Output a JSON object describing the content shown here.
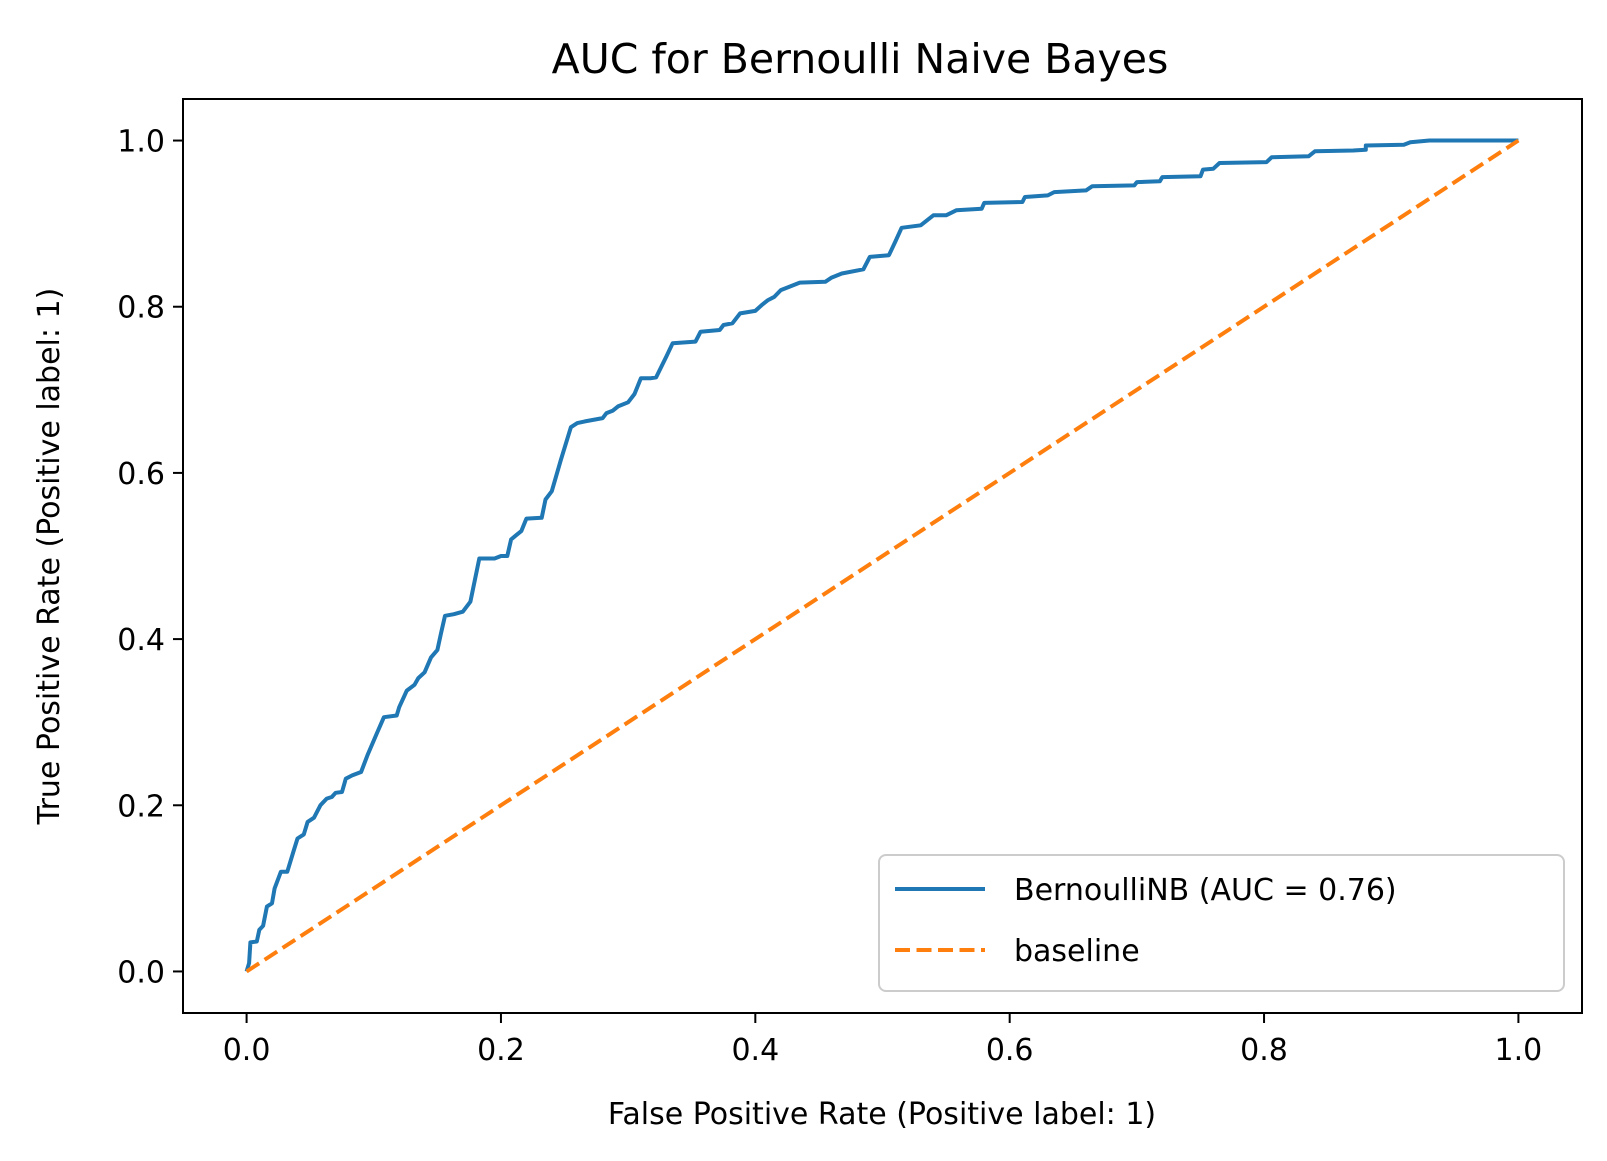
{
  "chart_data": {
    "type": "line",
    "title": "AUC for Bernoulli Naive Bayes",
    "xlabel": "False Positive Rate (Positive label: 1)",
    "ylabel": "True Positive Rate (Positive label: 1)",
    "xlim": [
      -0.05,
      1.05
    ],
    "ylim": [
      -0.05,
      1.05
    ],
    "x_ticks": [
      "0.0",
      "0.2",
      "0.4",
      "0.6",
      "0.8",
      "1.0"
    ],
    "y_ticks": [
      "0.0",
      "0.2",
      "0.4",
      "0.6",
      "0.8",
      "1.0"
    ],
    "grid": false,
    "legend_position": "lower-right",
    "series": [
      {
        "name": "BernoulliNB (AUC = 0.76)",
        "color": "#1f77b4",
        "style": "solid",
        "points": [
          [
            0.0,
            0.0
          ],
          [
            0.002,
            0.01
          ],
          [
            0.003,
            0.035
          ],
          [
            0.008,
            0.036
          ],
          [
            0.01,
            0.05
          ],
          [
            0.013,
            0.055
          ],
          [
            0.016,
            0.078
          ],
          [
            0.02,
            0.082
          ],
          [
            0.022,
            0.1
          ],
          [
            0.027,
            0.12
          ],
          [
            0.032,
            0.12
          ],
          [
            0.037,
            0.145
          ],
          [
            0.04,
            0.16
          ],
          [
            0.045,
            0.165
          ],
          [
            0.048,
            0.18
          ],
          [
            0.053,
            0.185
          ],
          [
            0.058,
            0.2
          ],
          [
            0.063,
            0.208
          ],
          [
            0.067,
            0.21
          ],
          [
            0.07,
            0.215
          ],
          [
            0.075,
            0.216
          ],
          [
            0.078,
            0.232
          ],
          [
            0.083,
            0.236
          ],
          [
            0.09,
            0.24
          ],
          [
            0.095,
            0.26
          ],
          [
            0.102,
            0.285
          ],
          [
            0.108,
            0.306
          ],
          [
            0.118,
            0.308
          ],
          [
            0.12,
            0.318
          ],
          [
            0.126,
            0.338
          ],
          [
            0.132,
            0.345
          ],
          [
            0.135,
            0.353
          ],
          [
            0.14,
            0.36
          ],
          [
            0.145,
            0.378
          ],
          [
            0.15,
            0.387
          ],
          [
            0.153,
            0.408
          ],
          [
            0.156,
            0.428
          ],
          [
            0.163,
            0.43
          ],
          [
            0.17,
            0.433
          ],
          [
            0.176,
            0.445
          ],
          [
            0.183,
            0.497
          ],
          [
            0.195,
            0.497
          ],
          [
            0.2,
            0.5
          ],
          [
            0.205,
            0.5
          ],
          [
            0.208,
            0.52
          ],
          [
            0.212,
            0.525
          ],
          [
            0.216,
            0.53
          ],
          [
            0.22,
            0.545
          ],
          [
            0.232,
            0.546
          ],
          [
            0.235,
            0.568
          ],
          [
            0.24,
            0.578
          ],
          [
            0.247,
            0.615
          ],
          [
            0.255,
            0.655
          ],
          [
            0.26,
            0.66
          ],
          [
            0.266,
            0.662
          ],
          [
            0.28,
            0.666
          ],
          [
            0.283,
            0.672
          ],
          [
            0.288,
            0.675
          ],
          [
            0.292,
            0.68
          ],
          [
            0.3,
            0.685
          ],
          [
            0.305,
            0.695
          ],
          [
            0.31,
            0.714
          ],
          [
            0.318,
            0.714
          ],
          [
            0.322,
            0.715
          ],
          [
            0.33,
            0.74
          ],
          [
            0.335,
            0.756
          ],
          [
            0.353,
            0.758
          ],
          [
            0.357,
            0.77
          ],
          [
            0.372,
            0.772
          ],
          [
            0.375,
            0.778
          ],
          [
            0.382,
            0.78
          ],
          [
            0.388,
            0.792
          ],
          [
            0.4,
            0.795
          ],
          [
            0.405,
            0.802
          ],
          [
            0.41,
            0.808
          ],
          [
            0.415,
            0.812
          ],
          [
            0.42,
            0.82
          ],
          [
            0.43,
            0.826
          ],
          [
            0.435,
            0.829
          ],
          [
            0.455,
            0.83
          ],
          [
            0.46,
            0.835
          ],
          [
            0.468,
            0.84
          ],
          [
            0.485,
            0.845
          ],
          [
            0.49,
            0.86
          ],
          [
            0.505,
            0.862
          ],
          [
            0.51,
            0.878
          ],
          [
            0.515,
            0.895
          ],
          [
            0.53,
            0.898
          ],
          [
            0.54,
            0.91
          ],
          [
            0.55,
            0.91
          ],
          [
            0.558,
            0.916
          ],
          [
            0.578,
            0.918
          ],
          [
            0.58,
            0.925
          ],
          [
            0.61,
            0.926
          ],
          [
            0.612,
            0.932
          ],
          [
            0.63,
            0.934
          ],
          [
            0.635,
            0.938
          ],
          [
            0.66,
            0.94
          ],
          [
            0.665,
            0.945
          ],
          [
            0.698,
            0.946
          ],
          [
            0.7,
            0.95
          ],
          [
            0.718,
            0.951
          ],
          [
            0.72,
            0.956
          ],
          [
            0.75,
            0.957
          ],
          [
            0.752,
            0.965
          ],
          [
            0.76,
            0.966
          ],
          [
            0.765,
            0.973
          ],
          [
            0.802,
            0.974
          ],
          [
            0.806,
            0.98
          ],
          [
            0.835,
            0.981
          ],
          [
            0.84,
            0.987
          ],
          [
            0.87,
            0.988
          ],
          [
            0.88,
            0.989
          ],
          [
            0.88,
            0.994
          ],
          [
            0.91,
            0.995
          ],
          [
            0.915,
            0.998
          ],
          [
            0.93,
            1.0
          ],
          [
            1.0,
            1.0
          ]
        ]
      },
      {
        "name": "baseline",
        "color": "#ff7f0e",
        "style": "dashed",
        "points": [
          [
            0.0,
            0.0
          ],
          [
            1.0,
            1.0
          ]
        ]
      }
    ]
  }
}
